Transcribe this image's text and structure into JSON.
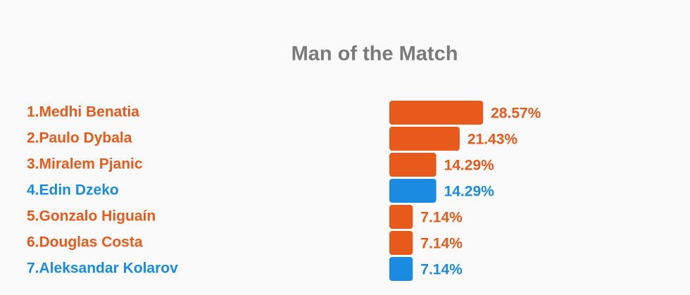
{
  "chart_data": {
    "type": "bar",
    "orientation": "horizontal",
    "title": "Man of the Match",
    "categories": [
      "1.Medhi Benatia",
      "2.Paulo Dybala",
      "3.Miralem Pjanic",
      "4.Edin Dzeko",
      "5.Gonzalo Higuaín",
      "6.Douglas Costa",
      "7.Aleksandar Kolarov"
    ],
    "values": [
      28.57,
      21.43,
      14.29,
      14.29,
      7.14,
      7.14,
      7.14
    ],
    "value_labels": [
      "28.57%",
      "21.43%",
      "14.29%",
      "14.29%",
      "7.14%",
      "7.14%",
      "7.14%"
    ],
    "colors": [
      "#e85a1b",
      "#e85a1b",
      "#e85a1b",
      "#1a8be0",
      "#e85a1b",
      "#e85a1b",
      "#1a8be0"
    ]
  }
}
